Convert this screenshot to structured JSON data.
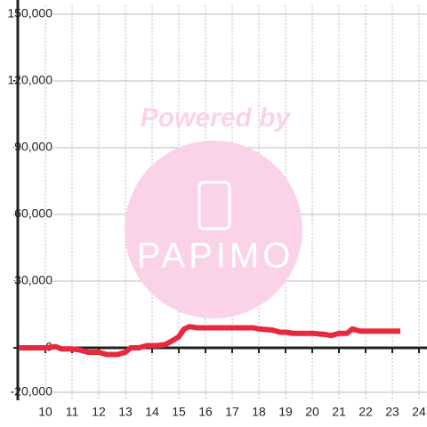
{
  "chart_data": {
    "type": "line",
    "watermark": "Powered by",
    "logo": "PAPIMO",
    "x": [
      9,
      10,
      10.4,
      10.6,
      11,
      11.3,
      11.6,
      12,
      12.3,
      12.7,
      13,
      13.2,
      13.5,
      13.8,
      14.2,
      14.5,
      14.8,
      15,
      15.2,
      15.4,
      15.7,
      16,
      17,
      17.8,
      18,
      18.5,
      18.8,
      19,
      19.3,
      20,
      20.5,
      20.7,
      21,
      21.3,
      21.5,
      21.8,
      22,
      23.3
    ],
    "series": [
      {
        "color": "#e8283c",
        "values": [
          0,
          0,
          500,
          -500,
          -500,
          -1000,
          -2000,
          -2000,
          -3000,
          -3000,
          -2000,
          0,
          0,
          1000,
          1000,
          1500,
          3500,
          5000,
          8500,
          9500,
          9000,
          9000,
          9000,
          9000,
          8500,
          8000,
          7000,
          7000,
          6500,
          6500,
          6000,
          5500,
          6500,
          6500,
          8500,
          7500,
          7500,
          7500
        ]
      }
    ],
    "xlim": [
      9,
      24.3
    ],
    "xticks": [
      10,
      11,
      12,
      13,
      14,
      15,
      16,
      17,
      18,
      19,
      20,
      21,
      22,
      23,
      24
    ],
    "ylim": [
      -20000,
      150000
    ],
    "yticks": [
      {
        "value": -20000,
        "label": "-20,000"
      },
      0,
      {
        "value": 30000,
        "label": "30,000"
      },
      {
        "value": 60000,
        "label": "60,000"
      },
      {
        "value": 90000,
        "label": "90,000"
      },
      {
        "value": 120000,
        "label": "120,000"
      },
      {
        "value": 150000,
        "label": "150,000"
      }
    ],
    "grid": true
  }
}
